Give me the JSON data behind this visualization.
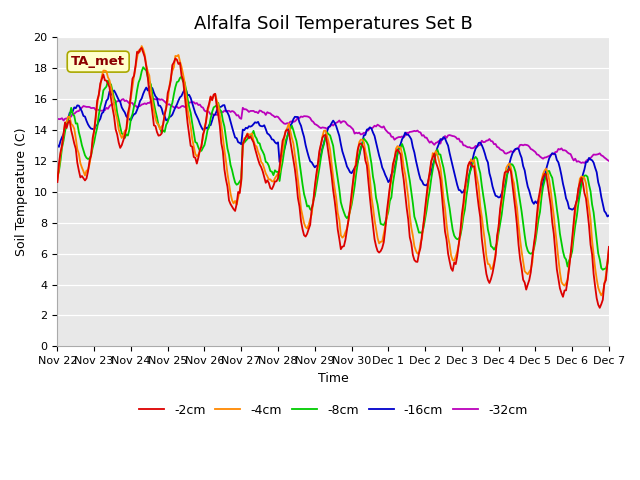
{
  "title": "Alfalfa Soil Temperatures Set B",
  "xlabel": "Time",
  "ylabel": "Soil Temperature (C)",
  "ylim": [
    0,
    20
  ],
  "yticks": [
    0,
    2,
    4,
    6,
    8,
    10,
    12,
    14,
    16,
    18,
    20
  ],
  "xtick_labels": [
    "Nov 22",
    "Nov 23",
    "Nov 24",
    "Nov 25",
    "Nov 26",
    "Nov 27",
    "Nov 28",
    "Nov 29",
    "Nov 30",
    "Dec 1",
    "Dec 2",
    "Dec 3",
    "Dec 4",
    "Dec 5",
    "Dec 6",
    "Dec 7"
  ],
  "series_colors": {
    "-2cm": "#dd0000",
    "-4cm": "#ff8800",
    "-8cm": "#00cc00",
    "-16cm": "#0000cc",
    "-32cm": "#bb00bb"
  },
  "annotation_text": "TA_met",
  "bg_color": "#e8e8e8",
  "line_width": 1.3,
  "title_fontsize": 13,
  "axis_fontsize": 9,
  "tick_fontsize": 8
}
